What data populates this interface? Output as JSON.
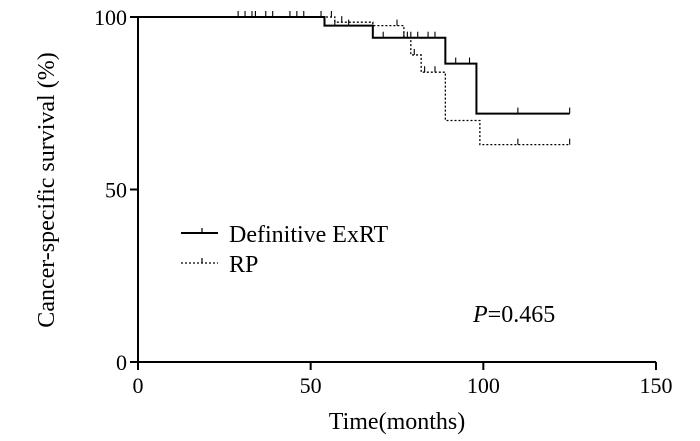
{
  "chart_data": {
    "type": "line",
    "title": "",
    "xlabel": "Time(months)",
    "ylabel": "Cancer-specific survival (%)",
    "xlim": [
      0,
      150
    ],
    "ylim": [
      0,
      100
    ],
    "xticks": [
      0,
      50,
      100,
      150
    ],
    "yticks": [
      0,
      50,
      100
    ],
    "grid": false,
    "legend_position": "middle-left",
    "annotation": {
      "italic": "P",
      "text": "=0.465"
    },
    "series": [
      {
        "name": "Definitive ExRT",
        "style": "solid",
        "color": "#000000",
        "x": [
          0,
          54,
          68,
          89,
          98,
          125
        ],
        "y": [
          100,
          97.5,
          94,
          86.5,
          72,
          72
        ],
        "censor_x": [
          29,
          31,
          33,
          37,
          39,
          44,
          46,
          48,
          53,
          57,
          61,
          71,
          77,
          79,
          81,
          84,
          86,
          92,
          96,
          110,
          125
        ]
      },
      {
        "name": "RP",
        "style": "dotted",
        "color": "#000000",
        "x": [
          0,
          57,
          68,
          77,
          79,
          82,
          89,
          99,
          125
        ],
        "y": [
          100,
          98.5,
          97.5,
          94,
          89,
          84,
          70,
          63,
          63
        ],
        "censor_x": [
          34,
          56,
          59,
          75,
          78,
          80,
          83,
          86,
          110,
          125
        ]
      }
    ]
  }
}
